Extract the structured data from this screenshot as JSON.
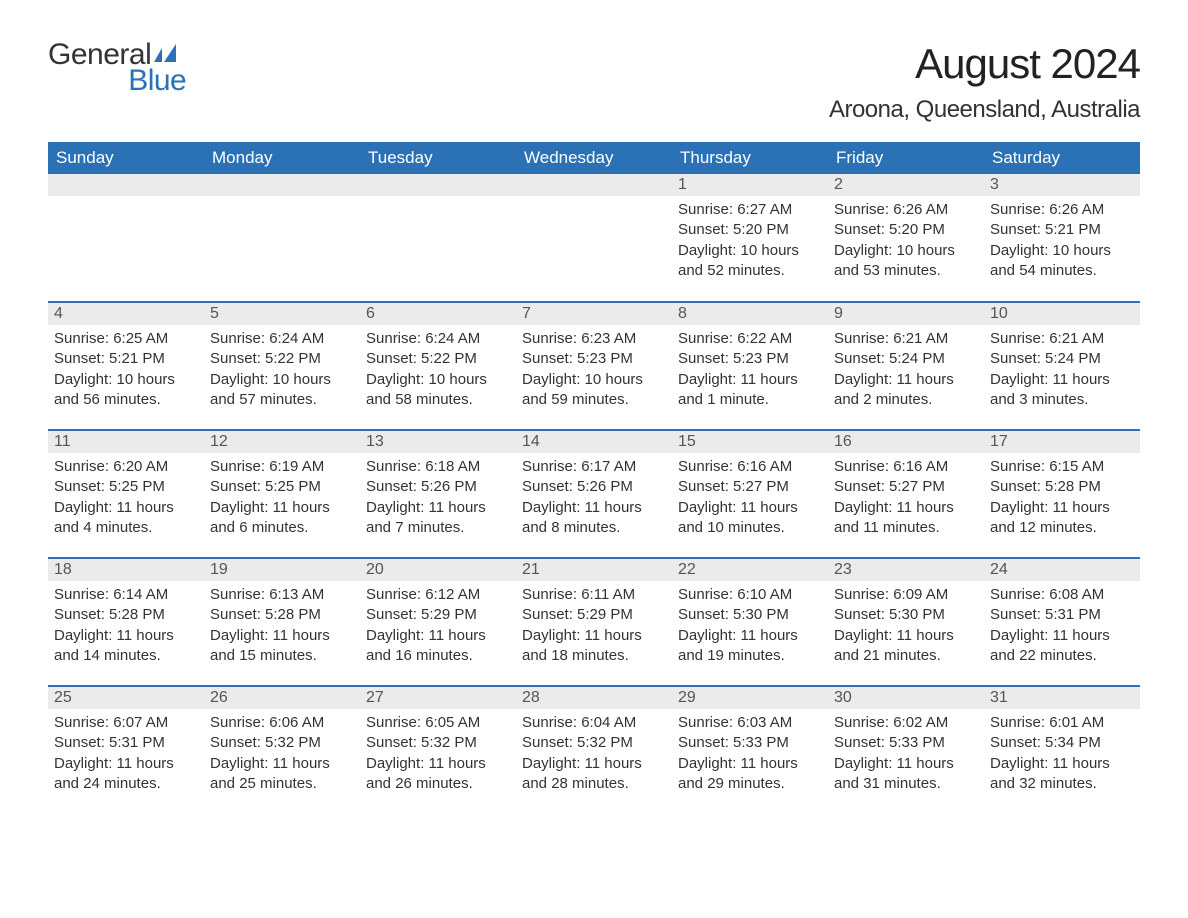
{
  "brand": {
    "word1": "General",
    "word2": "Blue",
    "word1_color": "#333333",
    "word2_color": "#2a72b5",
    "flag_color": "#2a72b5"
  },
  "title": "August 2024",
  "location": "Aroona, Queensland, Australia",
  "colors": {
    "header_bg": "#2a72b5",
    "header_fg": "#ffffff",
    "daynum_bg": "#ebebeb",
    "daynum_fg": "#555555",
    "body_fg": "#333333",
    "row_separator": "#2a72b5",
    "page_bg": "#ffffff"
  },
  "weekdays": [
    "Sunday",
    "Monday",
    "Tuesday",
    "Wednesday",
    "Thursday",
    "Friday",
    "Saturday"
  ],
  "weeks": [
    [
      null,
      null,
      null,
      null,
      {
        "day": "1",
        "sunrise": "Sunrise: 6:27 AM",
        "sunset": "Sunset: 5:20 PM",
        "daylight1": "Daylight: 10 hours",
        "daylight2": "and 52 minutes."
      },
      {
        "day": "2",
        "sunrise": "Sunrise: 6:26 AM",
        "sunset": "Sunset: 5:20 PM",
        "daylight1": "Daylight: 10 hours",
        "daylight2": "and 53 minutes."
      },
      {
        "day": "3",
        "sunrise": "Sunrise: 6:26 AM",
        "sunset": "Sunset: 5:21 PM",
        "daylight1": "Daylight: 10 hours",
        "daylight2": "and 54 minutes."
      }
    ],
    [
      {
        "day": "4",
        "sunrise": "Sunrise: 6:25 AM",
        "sunset": "Sunset: 5:21 PM",
        "daylight1": "Daylight: 10 hours",
        "daylight2": "and 56 minutes."
      },
      {
        "day": "5",
        "sunrise": "Sunrise: 6:24 AM",
        "sunset": "Sunset: 5:22 PM",
        "daylight1": "Daylight: 10 hours",
        "daylight2": "and 57 minutes."
      },
      {
        "day": "6",
        "sunrise": "Sunrise: 6:24 AM",
        "sunset": "Sunset: 5:22 PM",
        "daylight1": "Daylight: 10 hours",
        "daylight2": "and 58 minutes."
      },
      {
        "day": "7",
        "sunrise": "Sunrise: 6:23 AM",
        "sunset": "Sunset: 5:23 PM",
        "daylight1": "Daylight: 10 hours",
        "daylight2": "and 59 minutes."
      },
      {
        "day": "8",
        "sunrise": "Sunrise: 6:22 AM",
        "sunset": "Sunset: 5:23 PM",
        "daylight1": "Daylight: 11 hours",
        "daylight2": "and 1 minute."
      },
      {
        "day": "9",
        "sunrise": "Sunrise: 6:21 AM",
        "sunset": "Sunset: 5:24 PM",
        "daylight1": "Daylight: 11 hours",
        "daylight2": "and 2 minutes."
      },
      {
        "day": "10",
        "sunrise": "Sunrise: 6:21 AM",
        "sunset": "Sunset: 5:24 PM",
        "daylight1": "Daylight: 11 hours",
        "daylight2": "and 3 minutes."
      }
    ],
    [
      {
        "day": "11",
        "sunrise": "Sunrise: 6:20 AM",
        "sunset": "Sunset: 5:25 PM",
        "daylight1": "Daylight: 11 hours",
        "daylight2": "and 4 minutes."
      },
      {
        "day": "12",
        "sunrise": "Sunrise: 6:19 AM",
        "sunset": "Sunset: 5:25 PM",
        "daylight1": "Daylight: 11 hours",
        "daylight2": "and 6 minutes."
      },
      {
        "day": "13",
        "sunrise": "Sunrise: 6:18 AM",
        "sunset": "Sunset: 5:26 PM",
        "daylight1": "Daylight: 11 hours",
        "daylight2": "and 7 minutes."
      },
      {
        "day": "14",
        "sunrise": "Sunrise: 6:17 AM",
        "sunset": "Sunset: 5:26 PM",
        "daylight1": "Daylight: 11 hours",
        "daylight2": "and 8 minutes."
      },
      {
        "day": "15",
        "sunrise": "Sunrise: 6:16 AM",
        "sunset": "Sunset: 5:27 PM",
        "daylight1": "Daylight: 11 hours",
        "daylight2": "and 10 minutes."
      },
      {
        "day": "16",
        "sunrise": "Sunrise: 6:16 AM",
        "sunset": "Sunset: 5:27 PM",
        "daylight1": "Daylight: 11 hours",
        "daylight2": "and 11 minutes."
      },
      {
        "day": "17",
        "sunrise": "Sunrise: 6:15 AM",
        "sunset": "Sunset: 5:28 PM",
        "daylight1": "Daylight: 11 hours",
        "daylight2": "and 12 minutes."
      }
    ],
    [
      {
        "day": "18",
        "sunrise": "Sunrise: 6:14 AM",
        "sunset": "Sunset: 5:28 PM",
        "daylight1": "Daylight: 11 hours",
        "daylight2": "and 14 minutes."
      },
      {
        "day": "19",
        "sunrise": "Sunrise: 6:13 AM",
        "sunset": "Sunset: 5:28 PM",
        "daylight1": "Daylight: 11 hours",
        "daylight2": "and 15 minutes."
      },
      {
        "day": "20",
        "sunrise": "Sunrise: 6:12 AM",
        "sunset": "Sunset: 5:29 PM",
        "daylight1": "Daylight: 11 hours",
        "daylight2": "and 16 minutes."
      },
      {
        "day": "21",
        "sunrise": "Sunrise: 6:11 AM",
        "sunset": "Sunset: 5:29 PM",
        "daylight1": "Daylight: 11 hours",
        "daylight2": "and 18 minutes."
      },
      {
        "day": "22",
        "sunrise": "Sunrise: 6:10 AM",
        "sunset": "Sunset: 5:30 PM",
        "daylight1": "Daylight: 11 hours",
        "daylight2": "and 19 minutes."
      },
      {
        "day": "23",
        "sunrise": "Sunrise: 6:09 AM",
        "sunset": "Sunset: 5:30 PM",
        "daylight1": "Daylight: 11 hours",
        "daylight2": "and 21 minutes."
      },
      {
        "day": "24",
        "sunrise": "Sunrise: 6:08 AM",
        "sunset": "Sunset: 5:31 PM",
        "daylight1": "Daylight: 11 hours",
        "daylight2": "and 22 minutes."
      }
    ],
    [
      {
        "day": "25",
        "sunrise": "Sunrise: 6:07 AM",
        "sunset": "Sunset: 5:31 PM",
        "daylight1": "Daylight: 11 hours",
        "daylight2": "and 24 minutes."
      },
      {
        "day": "26",
        "sunrise": "Sunrise: 6:06 AM",
        "sunset": "Sunset: 5:32 PM",
        "daylight1": "Daylight: 11 hours",
        "daylight2": "and 25 minutes."
      },
      {
        "day": "27",
        "sunrise": "Sunrise: 6:05 AM",
        "sunset": "Sunset: 5:32 PM",
        "daylight1": "Daylight: 11 hours",
        "daylight2": "and 26 minutes."
      },
      {
        "day": "28",
        "sunrise": "Sunrise: 6:04 AM",
        "sunset": "Sunset: 5:32 PM",
        "daylight1": "Daylight: 11 hours",
        "daylight2": "and 28 minutes."
      },
      {
        "day": "29",
        "sunrise": "Sunrise: 6:03 AM",
        "sunset": "Sunset: 5:33 PM",
        "daylight1": "Daylight: 11 hours",
        "daylight2": "and 29 minutes."
      },
      {
        "day": "30",
        "sunrise": "Sunrise: 6:02 AM",
        "sunset": "Sunset: 5:33 PM",
        "daylight1": "Daylight: 11 hours",
        "daylight2": "and 31 minutes."
      },
      {
        "day": "31",
        "sunrise": "Sunrise: 6:01 AM",
        "sunset": "Sunset: 5:34 PM",
        "daylight1": "Daylight: 11 hours",
        "daylight2": "and 32 minutes."
      }
    ]
  ]
}
